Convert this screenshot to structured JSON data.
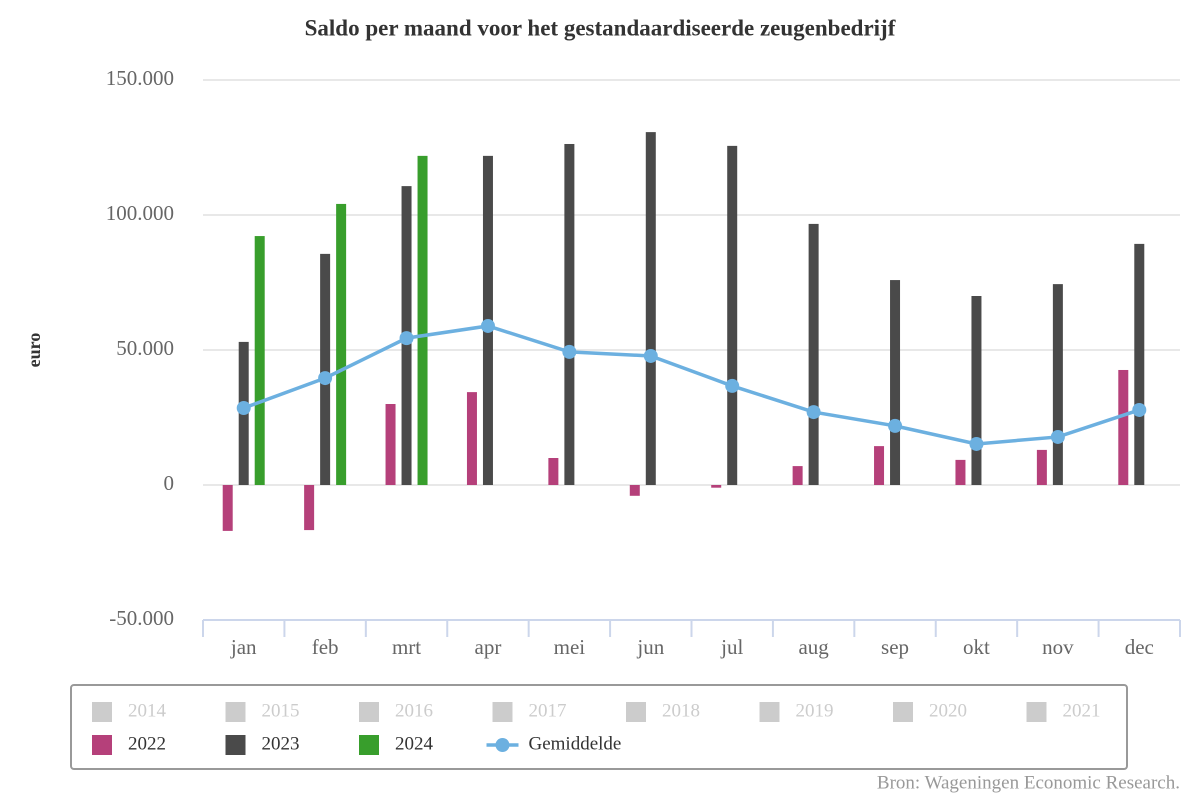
{
  "chart_data": {
    "type": "bar",
    "title": "Saldo per maand voor het gestandaardiseerde zeugenbedrijf",
    "y_label": "euro",
    "source": "Bron: Wageningen Economic Research.",
    "categories": [
      "jan",
      "feb",
      "mrt",
      "apr",
      "mei",
      "jun",
      "jul",
      "aug",
      "sep",
      "okt",
      "nov",
      "dec"
    ],
    "ylim": [
      -50000,
      150000
    ],
    "yticks": [
      {
        "value": -50000,
        "label": "-50.000"
      },
      0,
      {
        "value": 50000,
        "label": "50.000"
      },
      {
        "value": 100000,
        "label": "100.000"
      },
      {
        "value": 150000,
        "label": "150.000"
      }
    ],
    "grid": true,
    "series": [
      {
        "name": "2014",
        "visible": false
      },
      {
        "name": "2015",
        "visible": false
      },
      {
        "name": "2016",
        "visible": false
      },
      {
        "name": "2017",
        "visible": false
      },
      {
        "name": "2018",
        "visible": false
      },
      {
        "name": "2019",
        "visible": false
      },
      {
        "name": "2020",
        "visible": false
      },
      {
        "name": "2021",
        "visible": false
      },
      {
        "name": "2022",
        "color": "#b5407a",
        "values": [
          -17000,
          -16700,
          30000,
          34400,
          10000,
          -4000,
          -1000,
          7000,
          14400,
          9300,
          13000,
          42600
        ]
      },
      {
        "name": "2023",
        "color": "#4a4a4a",
        "values": [
          53000,
          85600,
          110700,
          121900,
          126300,
          130700,
          125600,
          96700,
          75900,
          70000,
          74400,
          89300
        ]
      },
      {
        "name": "2024",
        "color": "#389e2c",
        "values": [
          92200,
          104100,
          121900,
          null,
          null,
          null,
          null,
          null,
          null,
          null,
          null,
          null
        ]
      },
      {
        "name": "Gemiddelde",
        "type": "line",
        "color": "#6cb0e0",
        "values": [
          28500,
          39600,
          54400,
          58900,
          49300,
          47800,
          36700,
          27000,
          21900,
          15200,
          17800,
          27800
        ]
      }
    ]
  }
}
